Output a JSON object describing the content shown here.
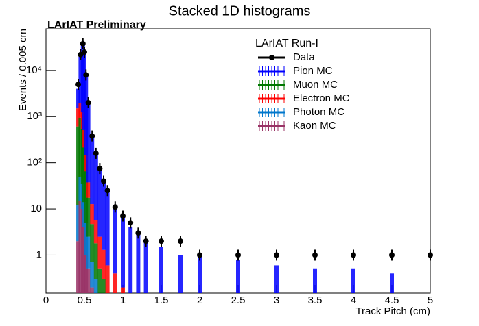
{
  "chart_data": {
    "type": "bar",
    "stacked": true,
    "log_y": true,
    "title": "Stacked 1D histograms",
    "subtitle": "LArIAT Preliminary",
    "legend_title": "LArIAT Run-I",
    "legend_position": "top-right",
    "x_label": "Track Pitch (cm)",
    "y_label": "Events / 0.005 cm",
    "x": [
      0.42,
      0.45,
      0.48,
      0.5,
      0.52,
      0.55,
      0.6,
      0.65,
      0.7,
      0.75,
      0.8,
      0.9,
      1.0,
      1.1,
      1.2,
      1.3,
      1.5,
      1.75,
      2.0,
      2.5,
      3.0,
      3.5,
      4.0,
      4.5,
      5.0
    ],
    "data": {
      "name": "Data",
      "color": "#000000",
      "values": [
        5000,
        22000,
        38000,
        25000,
        8000,
        2000,
        380,
        160,
        75,
        40,
        25,
        11,
        7,
        5,
        3,
        2,
        2,
        2,
        1,
        1,
        1,
        1,
        1,
        1,
        1
      ]
    },
    "series": [
      {
        "name": "Pion MC",
        "color": "#0000ff",
        "values": [
          2500,
          18000,
          35000,
          22000,
          7000,
          1800,
          350,
          140,
          70,
          35,
          22,
          10,
          6,
          4,
          3,
          2,
          1.5,
          1,
          1,
          0.8,
          0.6,
          0.5,
          0.5,
          0.4,
          0
        ]
      },
      {
        "name": "Muon MC",
        "color": "#007700",
        "values": [
          600,
          900,
          500,
          200,
          60,
          15,
          4,
          1.5,
          0.5,
          0.3,
          0,
          0,
          0,
          0,
          0,
          0,
          0,
          0,
          0,
          0,
          0,
          0,
          0,
          0,
          0
        ]
      },
      {
        "name": "Electron MC",
        "color": "#ff0000",
        "values": [
          900,
          1000,
          700,
          300,
          80,
          20,
          8,
          4,
          2,
          1,
          0.6,
          0.4,
          0.2,
          0.1,
          0,
          0,
          0,
          0,
          0,
          0,
          0,
          0,
          0,
          0,
          0
        ]
      },
      {
        "name": "Photon MC",
        "color": "#0077cc",
        "values": [
          10,
          35,
          25,
          10,
          4,
          2,
          0.5,
          0.3,
          0,
          0,
          0,
          0,
          0,
          0,
          0,
          0,
          0,
          0,
          0,
          0,
          0,
          0,
          0,
          0,
          0
        ]
      },
      {
        "name": "Kaon MC",
        "color": "#993366",
        "values": [
          2,
          15,
          10,
          4,
          1,
          0.5,
          0.2,
          0,
          0,
          0,
          0,
          0,
          0,
          0,
          0,
          0,
          0,
          0,
          0,
          0,
          0,
          0,
          0,
          0,
          0
        ]
      }
    ],
    "stack_order": [
      4,
      3,
      1,
      2,
      0
    ],
    "xlim": [
      0,
      5
    ],
    "xticks": [
      0,
      0.5,
      1,
      1.5,
      2,
      2.5,
      3,
      3.5,
      4,
      4.5,
      5
    ],
    "ylim": [
      0.15,
      80000
    ],
    "yticks": [
      1,
      10,
      {
        "value": 100,
        "label": "10²"
      },
      {
        "value": 1000,
        "label": "10³"
      },
      {
        "value": 10000,
        "label": "10⁴"
      }
    ]
  }
}
